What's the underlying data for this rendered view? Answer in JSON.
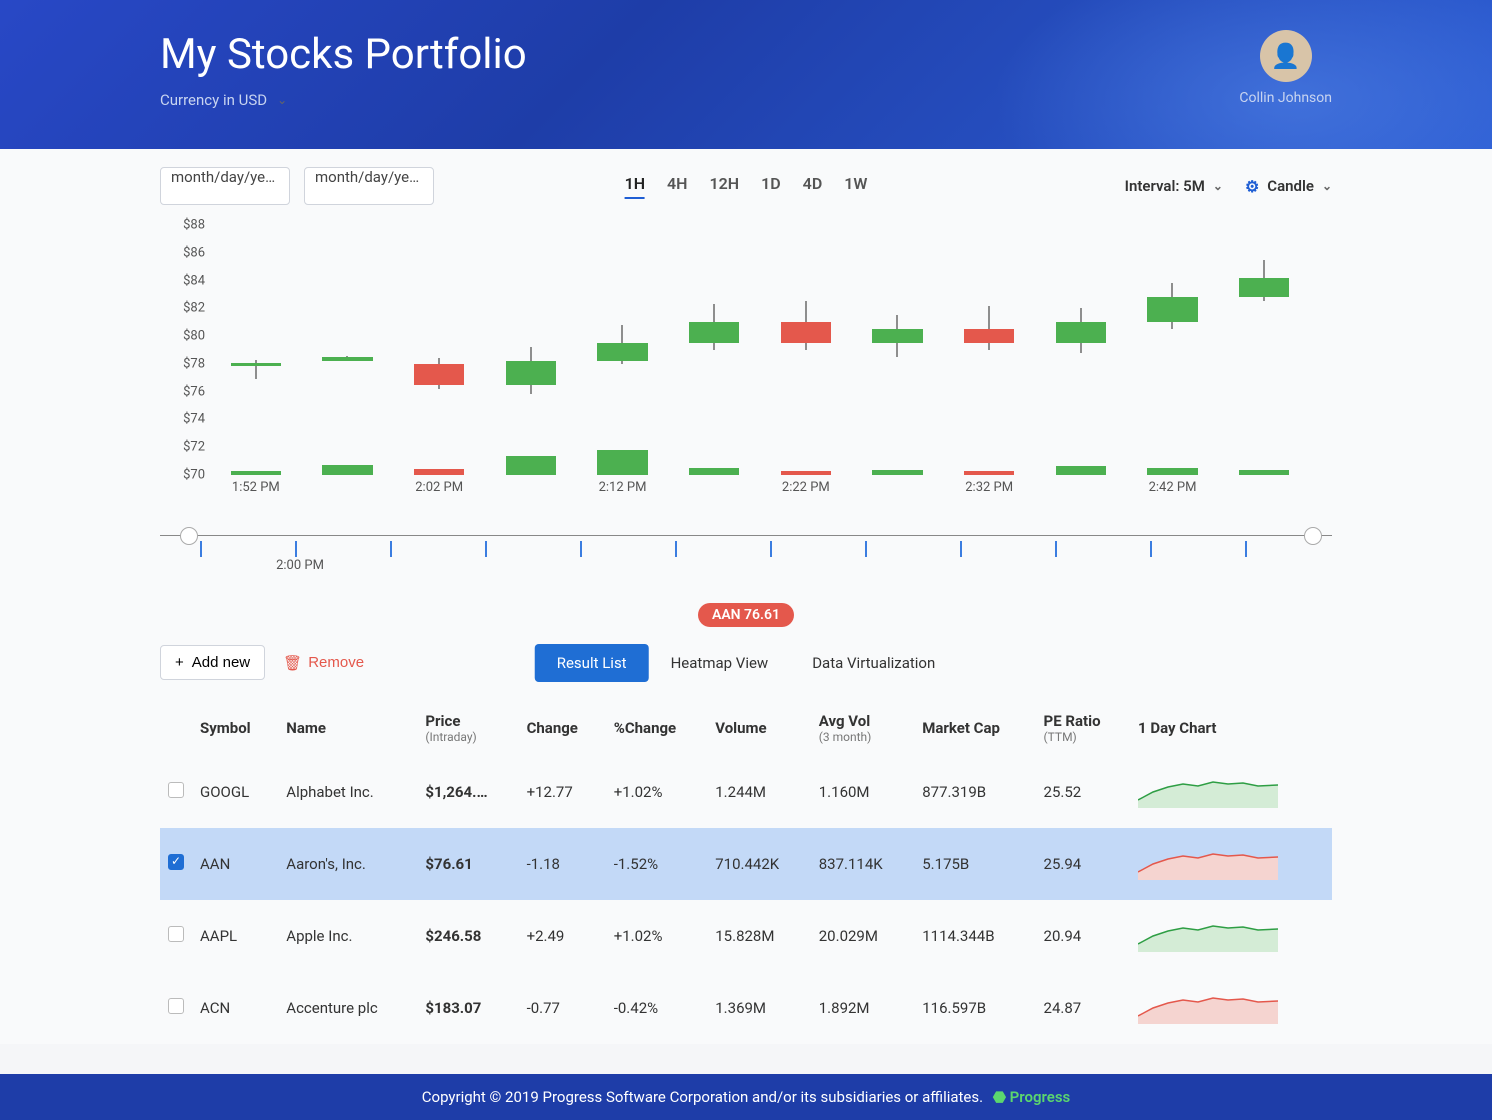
{
  "header": {
    "title": "My Stocks Portfolio",
    "currency_label": "Currency in USD",
    "user_name": "Collin Johnson"
  },
  "controls": {
    "date_placeholder": "month/day/ye…",
    "ranges": [
      "1H",
      "4H",
      "12H",
      "1D",
      "4D",
      "1W"
    ],
    "range_active": "1H",
    "interval_label": "Interval: 5M",
    "chart_type_label": "Candle"
  },
  "chart": {
    "ylim": [
      70,
      88
    ],
    "ytick_step": 2,
    "yticks": [
      "$88",
      "$86",
      "$84",
      "$82",
      "$80",
      "$78",
      "$76",
      "$74",
      "$72",
      "$70"
    ],
    "xlabels": [
      "1:52 PM",
      "2:02 PM",
      "2:12 PM",
      "2:22 PM",
      "2:32 PM",
      "2:42 PM"
    ],
    "up_color": "#4cb050",
    "down_color": "#e4584c",
    "wick_color": "#222222",
    "candles": [
      {
        "o": 78.0,
        "c": 78.1,
        "h": 78.3,
        "l": 76.9,
        "dir": "up",
        "vol": 0.15
      },
      {
        "o": 78.2,
        "c": 78.5,
        "h": 78.6,
        "l": 78.2,
        "dir": "up",
        "vol": 0.35
      },
      {
        "o": 78.0,
        "c": 76.5,
        "h": 78.4,
        "l": 76.2,
        "dir": "down",
        "vol": 0.2
      },
      {
        "o": 76.5,
        "c": 78.2,
        "h": 79.2,
        "l": 75.8,
        "dir": "up",
        "vol": 0.65
      },
      {
        "o": 78.2,
        "c": 79.5,
        "h": 80.8,
        "l": 78.0,
        "dir": "up",
        "vol": 0.85
      },
      {
        "o": 79.5,
        "c": 81.0,
        "h": 82.3,
        "l": 79.0,
        "dir": "up",
        "vol": 0.25
      },
      {
        "o": 81.0,
        "c": 79.5,
        "h": 82.5,
        "l": 79.0,
        "dir": "down",
        "vol": 0.15
      },
      {
        "o": 79.5,
        "c": 80.5,
        "h": 81.5,
        "l": 78.5,
        "dir": "up",
        "vol": 0.18
      },
      {
        "o": 80.5,
        "c": 79.5,
        "h": 82.2,
        "l": 79.0,
        "dir": "down",
        "vol": 0.14
      },
      {
        "o": 79.5,
        "c": 81.0,
        "h": 82.0,
        "l": 78.8,
        "dir": "up",
        "vol": 0.3
      },
      {
        "o": 81.0,
        "c": 82.8,
        "h": 83.8,
        "l": 80.5,
        "dir": "up",
        "vol": 0.22
      },
      {
        "o": 82.8,
        "c": 84.2,
        "h": 85.5,
        "l": 82.5,
        "dir": "up",
        "vol": 0.18
      }
    ],
    "scrubber_label": "2:00 PM"
  },
  "badge": {
    "text": "AAN  76.61"
  },
  "actions": {
    "add_label": "Add new",
    "remove_label": "Remove",
    "view_tabs": [
      "Result List",
      "Heatmap View",
      "Data Virtualization"
    ],
    "view_active": "Result List"
  },
  "table": {
    "columns": [
      {
        "label": "Symbol"
      },
      {
        "label": "Name"
      },
      {
        "label": "Price",
        "sub": "(Intraday)"
      },
      {
        "label": "Change"
      },
      {
        "label": "%Change"
      },
      {
        "label": "Volume"
      },
      {
        "label": "Avg Vol",
        "sub": "(3 month)"
      },
      {
        "label": "Market Cap"
      },
      {
        "label": "PE Ratio",
        "sub": "(TTM)"
      },
      {
        "label": "1 Day Chart"
      }
    ],
    "rows": [
      {
        "sel": false,
        "sym": "GOOGL",
        "name": "Alphabet Inc.",
        "price": "$1,264.…",
        "chg": "+12.77",
        "pchg": "+1.02%",
        "dir": "up",
        "vol": "1.244M",
        "avol": "1.160M",
        "cap": "877.319B",
        "pe": "25.52"
      },
      {
        "sel": true,
        "sym": "AAN",
        "name": "Aaron's, Inc.",
        "price": "$76.61",
        "chg": "-1.18",
        "pchg": "-1.52%",
        "dir": "down",
        "vol": "710.442K",
        "avol": "837.114K",
        "cap": "5.175B",
        "pe": "25.94"
      },
      {
        "sel": false,
        "sym": "AAPL",
        "name": "Apple Inc.",
        "price": "$246.58",
        "chg": "+2.49",
        "pchg": "+1.02%",
        "dir": "up",
        "vol": "15.828M",
        "avol": "20.029M",
        "cap": "1114.344B",
        "pe": "20.94"
      },
      {
        "sel": false,
        "sym": "ACN",
        "name": "Accenture plc",
        "price": "$183.07",
        "chg": "-0.77",
        "pchg": "-0.42%",
        "dir": "down",
        "vol": "1.369M",
        "avol": "1.892M",
        "cap": "116.597B",
        "pe": "24.87"
      }
    ]
  },
  "footer": {
    "text": "Copyright © 2019 Progress Software Corporation and/or its subsidiaries or affiliates.",
    "brand": "Progress"
  }
}
